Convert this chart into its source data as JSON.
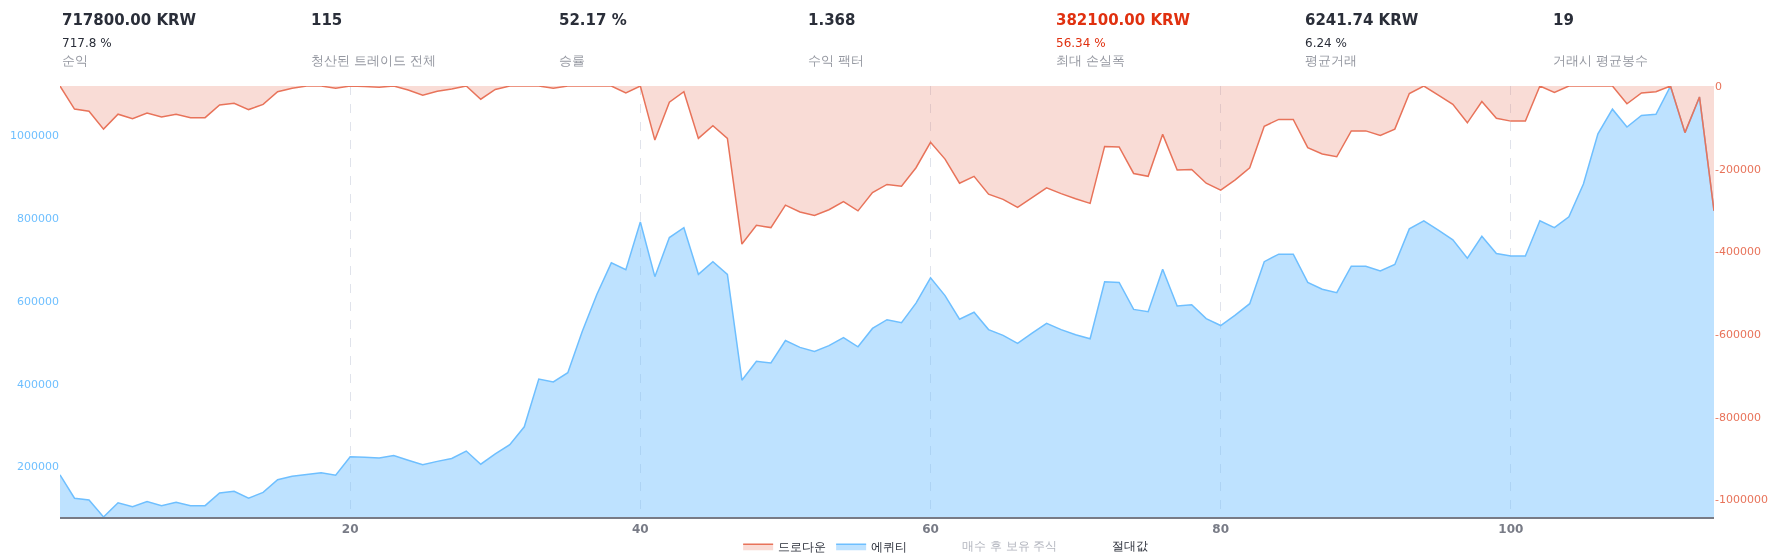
{
  "chart_data": [
    {
      "type": "other",
      "annotations": [
        "717800.00 KRW\n717.8 %\n순익",
        "115\n청산된 트레이드 전체",
        "52.17 %\n승률",
        "1.368\n수익 팩터",
        "382100.00 KRW\n56.34 %\n최대 손실폭",
        "6241.74 KRW\n6.24 %\n평균거래",
        "19\n거래시 평균봉수"
      ],
      "colors": [
        "#2a2e39",
        "#2a2e39",
        "#2a2e39",
        "#2a2e39",
        "#e0300f",
        "#2a2e39",
        "#2a2e39"
      ]
    },
    {
      "type": "area",
      "x": [
        0,
        1,
        2,
        3,
        4,
        5,
        6,
        7,
        8,
        9,
        10,
        11,
        12,
        13,
        14,
        15,
        16,
        17,
        18,
        19,
        20,
        21,
        22,
        23,
        24,
        25,
        26,
        27,
        28,
        29,
        30,
        31,
        32,
        33,
        34,
        35,
        36,
        37,
        38,
        39,
        40,
        41,
        42,
        43,
        44,
        45,
        46,
        47,
        48,
        49,
        50,
        51,
        52,
        53,
        54,
        55,
        56,
        57,
        58,
        59,
        60,
        61,
        62,
        63,
        64,
        65,
        66,
        67,
        68,
        69,
        70,
        71,
        72,
        73,
        74,
        75,
        76,
        77,
        78,
        79,
        80,
        81,
        82,
        83,
        84,
        85,
        86,
        87,
        88,
        89,
        90,
        91,
        92,
        93,
        94,
        95,
        96,
        97,
        98,
        99,
        100,
        101,
        102,
        103,
        104,
        105,
        106,
        107,
        108,
        109,
        110,
        111,
        112,
        113,
        114
      ],
      "series": [
        {
          "name": "드로다운",
          "color": "#e8735a",
          "axis": "y2",
          "values": [
            0,
            -55700,
            -61200,
            -104300,
            -68200,
            -79300,
            -65400,
            -75100,
            -68200,
            -76500,
            -76500,
            -45900,
            -41700,
            -57000,
            -44500,
            -13900,
            -5600,
            0,
            0,
            -5600,
            0,
            -1400,
            -2800,
            0,
            -9700,
            -22300,
            -12500,
            -7000,
            0,
            -32000,
            -8300,
            0,
            0,
            0,
            -5600,
            0,
            0,
            0,
            0,
            -16700,
            0,
            -130800,
            -39000,
            -13900,
            -126600,
            -96000,
            -126600,
            -382100,
            -336700,
            -342300,
            -288000,
            -304700,
            -313000,
            -299100,
            -279700,
            -301900,
            -257400,
            -237900,
            -242100,
            -197600,
            -136300,
            -176700,
            -235100,
            -218400,
            -261600,
            -274100,
            -293600,
            -269900,
            -246300,
            -260200,
            -272700,
            -283800,
            -146100,
            -147500,
            -211500,
            -218400,
            -116900,
            -203100,
            -201700,
            -235100,
            -251800,
            -226800,
            -197600,
            -97400,
            -80700,
            -80700,
            -148900,
            -164200,
            -171100,
            -108500,
            -108500,
            -119600,
            -104300,
            -18100,
            0,
            -22300,
            -44500,
            -89000,
            -37600,
            -77900,
            -84900,
            -84900,
            0,
            -15300,
            0,
            0,
            0,
            0,
            -43100,
            -16700,
            -13900,
            0,
            -112700,
            -26400,
            -301900
          ]
        },
        {
          "name": "에퀴티",
          "color": "#6ebfff",
          "values": [
            180000,
            123500,
            119300,
            78000,
            112400,
            102600,
            115100,
            105400,
            113700,
            105400,
            105400,
            136000,
            140200,
            123500,
            137400,
            168000,
            176400,
            180600,
            184700,
            179100,
            223700,
            222300,
            220900,
            226400,
            215300,
            204200,
            212500,
            219500,
            237500,
            205600,
            230600,
            252900,
            296000,
            411500,
            404500,
            426800,
            526900,
            616000,
            692500,
            675800,
            791300,
            659100,
            753700,
            777400,
            664700,
            695300,
            664700,
            408700,
            454600,
            450400,
            504700,
            488000,
            478300,
            492200,
            511700,
            489400,
            533900,
            555000,
            547800,
            595100,
            656400,
            613200,
            556200,
            572900,
            531100,
            517200,
            497700,
            522800,
            546400,
            531100,
            518600,
            508900,
            646600,
            645200,
            579800,
            574200,
            677200,
            588200,
            591000,
            557600,
            540900,
            565900,
            593700,
            695300,
            713400,
            713400,
            645200,
            628500,
            620200,
            684200,
            684200,
            673100,
            688400,
            774600,
            794100,
            771800,
            748200,
            703600,
            756500,
            714800,
            709200,
            709200,
            794100,
            777400,
            803800,
            883100,
            1004200,
            1064000,
            1020900,
            1048700,
            1051500,
            1119600,
            1007000,
            1093200,
            817800
          ]
        }
      ],
      "xlim": [
        0,
        114
      ],
      "xticks": [
        20,
        40,
        60,
        80,
        100
      ],
      "ylim": [
        78000,
        1120000
      ],
      "yticks": [
        200000,
        400000,
        600000,
        800000,
        1000000
      ],
      "y2lim": [
        -1042000,
        0
      ],
      "y2ticks": [
        0,
        -200000,
        -400000,
        -600000,
        -800000,
        -1000000
      ],
      "grid": "x",
      "legend": "bottom",
      "marker": "none",
      "line_style": "solid",
      "annotations": [
        "매수 후 보유 주식",
        "절대값"
      ]
    }
  ]
}
